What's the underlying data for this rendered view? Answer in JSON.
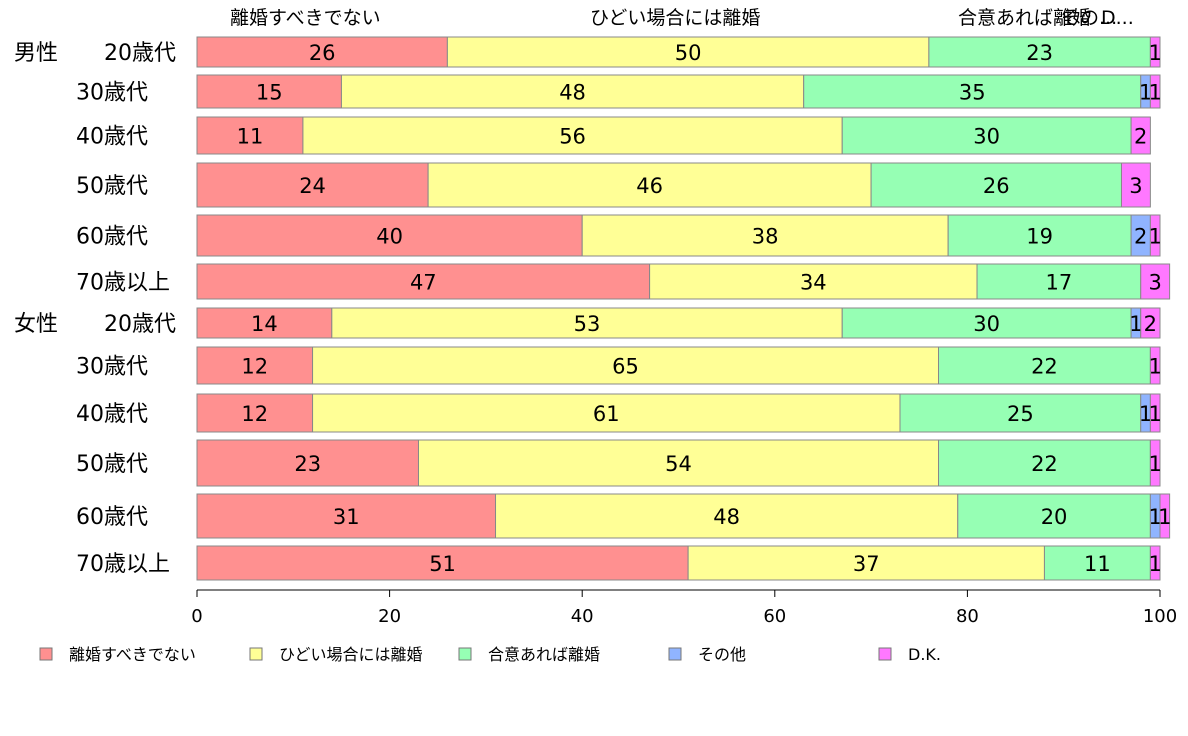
{
  "chart_data": {
    "type": "bar",
    "orientation": "horizontal",
    "stacked": true,
    "title": "",
    "xlabel": "",
    "ylabel": "",
    "xlim": [
      0,
      100
    ],
    "x_ticks": [
      "0",
      "20",
      "40",
      "60",
      "80",
      "100"
    ],
    "grid": false,
    "legend_position": "bottom",
    "top_labels": [
      "離婚すべきでない",
      "ひどい場合には離婚",
      "合意あれば離婚",
      "その...",
      "D..."
    ],
    "groups": [
      {
        "label": "男性",
        "start_index": 0
      },
      {
        "label": "女性",
        "start_index": 6
      }
    ],
    "categories": [
      "20歳代",
      "30歳代",
      "40歳代",
      "50歳代",
      "60歳代",
      "70歳以上",
      "20歳代",
      "30歳代",
      "40歳代",
      "50歳代",
      "60歳代",
      "70歳以上"
    ],
    "series": [
      {
        "name": "離婚すべきでない",
        "color": "#ff9090",
        "values": [
          26,
          15,
          11,
          24,
          40,
          47,
          14,
          12,
          12,
          23,
          31,
          51
        ]
      },
      {
        "name": "ひどい場合には離婚",
        "color": "#ffff96",
        "values": [
          50,
          48,
          56,
          46,
          38,
          34,
          53,
          65,
          61,
          54,
          48,
          37
        ]
      },
      {
        "name": "合意あれば離婚",
        "color": "#96ffb4",
        "values": [
          23,
          35,
          30,
          26,
          19,
          17,
          30,
          22,
          25,
          22,
          20,
          11
        ]
      },
      {
        "name": "その他",
        "color": "#90b4ff",
        "values": [
          0,
          1,
          0,
          0,
          2,
          0,
          1,
          0,
          1,
          0,
          1,
          0
        ]
      },
      {
        "name": "D.K.",
        "color": "#ff78ff",
        "values": [
          1,
          1,
          2,
          3,
          1,
          3,
          2,
          1,
          1,
          1,
          1,
          1
        ]
      }
    ]
  }
}
